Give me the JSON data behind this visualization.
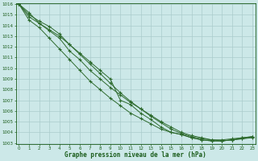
{
  "title": "Graphe pression niveau de la mer (hPa)",
  "xlabel": "Graphe pression niveau de la mer (hPa)",
  "x_hours": [
    0,
    1,
    2,
    3,
    4,
    5,
    6,
    7,
    8,
    9,
    10,
    11,
    12,
    13,
    14,
    15,
    16,
    17,
    18,
    19,
    20,
    21,
    22,
    23
  ],
  "lines": [
    [
      1016.0,
      1015.2,
      1014.2,
      1013.6,
      1013.0,
      1012.2,
      1011.4,
      1010.6,
      1009.8,
      1009.0,
      1007.0,
      1006.6,
      1005.8,
      1005.2,
      1004.5,
      1004.0,
      1003.8,
      1003.5,
      1003.3,
      1003.2,
      1003.2,
      1003.3,
      1003.4,
      1003.5
    ],
    [
      1016.0,
      1014.8,
      1014.2,
      1013.5,
      1012.8,
      1011.6,
      1010.8,
      1009.8,
      1009.0,
      1008.2,
      1007.5,
      1006.8,
      1006.2,
      1005.6,
      1005.0,
      1004.5,
      1004.0,
      1003.7,
      1003.5,
      1003.3,
      1003.2,
      1003.3,
      1003.4,
      1003.6
    ],
    [
      1016.0,
      1014.5,
      1013.8,
      1012.8,
      1011.8,
      1010.8,
      1009.8,
      1008.8,
      1008.0,
      1007.2,
      1006.5,
      1005.8,
      1005.3,
      1004.8,
      1004.3,
      1004.0,
      1003.8,
      1003.5,
      1003.3,
      1003.2,
      1003.2,
      1003.3,
      1003.5,
      1003.6
    ],
    [
      1016.0,
      1015.0,
      1014.4,
      1013.9,
      1013.2,
      1012.2,
      1011.3,
      1010.4,
      1009.5,
      1008.6,
      1007.7,
      1006.9,
      1006.2,
      1005.5,
      1004.9,
      1004.3,
      1003.9,
      1003.6,
      1003.4,
      1003.3,
      1003.3,
      1003.4,
      1003.5,
      1003.6
    ]
  ],
  "line_color": "#2d6a2d",
  "marker_color": "#2d6a2d",
  "bg_color": "#cce8e8",
  "grid_major_color": "#aacccc",
  "grid_minor_color": "#bbdddd",
  "axis_label_color": "#1a5c1a",
  "tick_color": "#1a5c1a",
  "ylim_min": 1003,
  "ylim_max": 1016,
  "yticks": [
    1003,
    1004,
    1005,
    1006,
    1007,
    1008,
    1009,
    1010,
    1011,
    1012,
    1013,
    1014,
    1015,
    1016
  ],
  "xticks": [
    0,
    1,
    2,
    3,
    4,
    5,
    6,
    7,
    8,
    9,
    10,
    11,
    12,
    13,
    14,
    15,
    16,
    17,
    18,
    19,
    20,
    21,
    22,
    23
  ]
}
